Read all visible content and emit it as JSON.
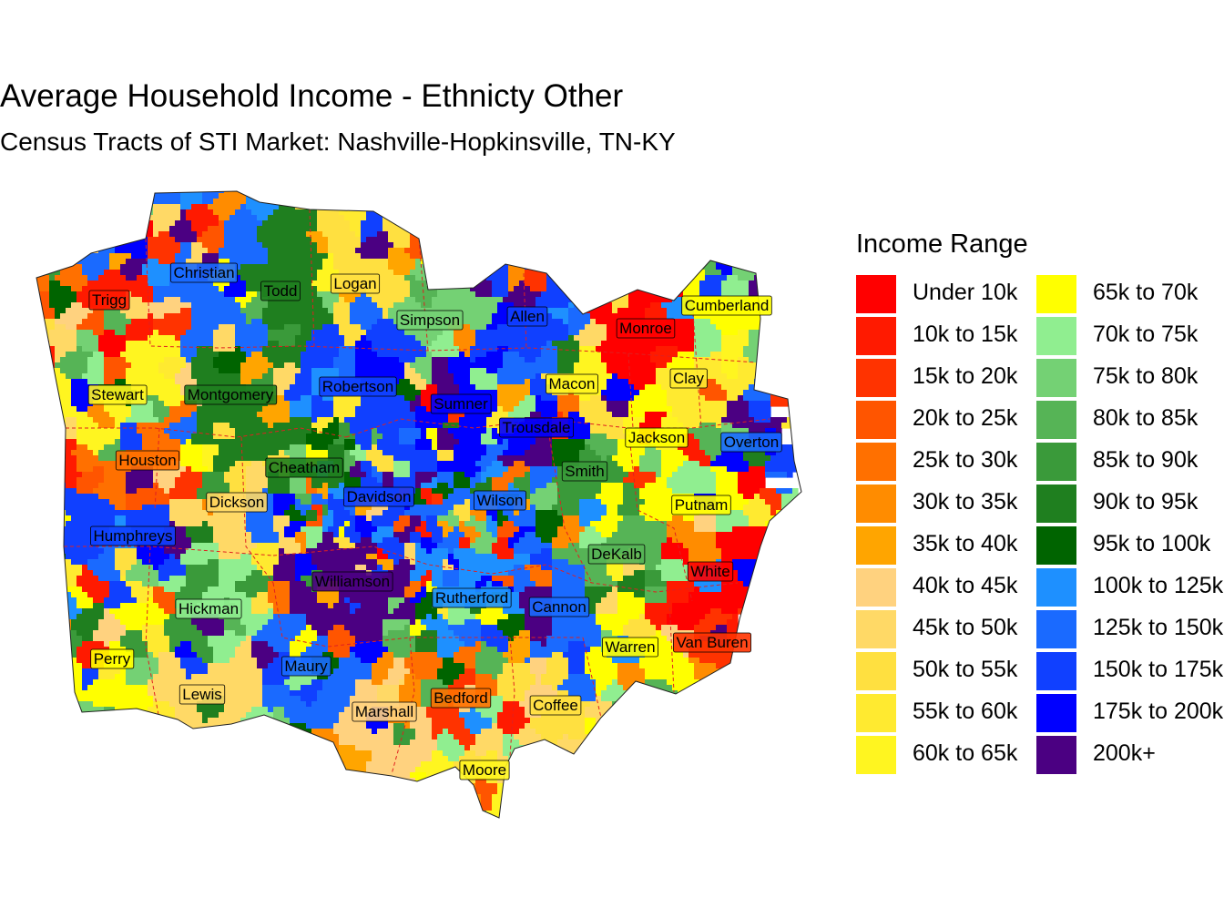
{
  "title": "Average Household Income - Ethnicty Other",
  "subtitle": "Census Tracts of STI Market: Nashville-Hopkinsville, TN-KY",
  "legend": {
    "title": "Income Range",
    "items": [
      {
        "label": "Under 10k",
        "color": "#FF0000"
      },
      {
        "label": "10k to 15k",
        "color": "#FF1A00"
      },
      {
        "label": "15k to 20k",
        "color": "#FF3300"
      },
      {
        "label": "20k to 25k",
        "color": "#FF5500"
      },
      {
        "label": "25k to 30k",
        "color": "#FF7000"
      },
      {
        "label": "30k to 35k",
        "color": "#FF8C00"
      },
      {
        "label": "35k to 40k",
        "color": "#FFA500"
      },
      {
        "label": "40k to 45k",
        "color": "#FFD27F"
      },
      {
        "label": "45k to 50k",
        "color": "#FFD966"
      },
      {
        "label": "50k to 55k",
        "color": "#FFE040"
      },
      {
        "label": "55k to 60k",
        "color": "#FFEA30"
      },
      {
        "label": "60k to 65k",
        "color": "#FFF520"
      },
      {
        "label": "65k to 70k",
        "color": "#FFFF00"
      },
      {
        "label": "70k to 75k",
        "color": "#90EE90"
      },
      {
        "label": "75k to 80k",
        "color": "#74D174"
      },
      {
        "label": "80k to 85k",
        "color": "#56B456"
      },
      {
        "label": "85k to 90k",
        "color": "#3A9A3A"
      },
      {
        "label": "90k to 95k",
        "color": "#1F7F1F"
      },
      {
        "label": "95k to 100k",
        "color": "#006400"
      },
      {
        "label": "100k to 125k",
        "color": "#1E90FF"
      },
      {
        "label": "125k to 150k",
        "color": "#1A6AFF"
      },
      {
        "label": "150k to 175k",
        "color": "#1040FF"
      },
      {
        "label": "175k to 200k",
        "color": "#0000FF"
      },
      {
        "label": "200k+",
        "color": "#4B0082"
      }
    ]
  },
  "counties": [
    {
      "name": "Trigg",
      "cls": 1
    },
    {
      "name": "Christian",
      "cls": 20
    },
    {
      "name": "Todd",
      "cls": 17
    },
    {
      "name": "Logan",
      "cls": 9
    },
    {
      "name": "Simpson",
      "cls": 14
    },
    {
      "name": "Allen",
      "cls": 21
    },
    {
      "name": "Monroe",
      "cls": 0
    },
    {
      "name": "Cumberland",
      "cls": 12
    },
    {
      "name": "Stewart",
      "cls": 11
    },
    {
      "name": "Montgomery",
      "cls": 17
    },
    {
      "name": "Robertson",
      "cls": 21
    },
    {
      "name": "Sumner",
      "cls": 22
    },
    {
      "name": "Macon",
      "cls": 11
    },
    {
      "name": "Clay",
      "cls": 10
    },
    {
      "name": "Trousdale",
      "cls": 22
    },
    {
      "name": "Jackson",
      "cls": 12
    },
    {
      "name": "Overton",
      "cls": 20
    },
    {
      "name": "Houston",
      "cls": 4
    },
    {
      "name": "Cheatham",
      "cls": 17
    },
    {
      "name": "Smith",
      "cls": 16
    },
    {
      "name": "Davidson",
      "cls": 21
    },
    {
      "name": "Wilson",
      "cls": 20
    },
    {
      "name": "Dickson",
      "cls": 8
    },
    {
      "name": "Putnam",
      "cls": 12
    },
    {
      "name": "Humphreys",
      "cls": 21
    },
    {
      "name": "DeKalb",
      "cls": 15
    },
    {
      "name": "White",
      "cls": 0
    },
    {
      "name": "Williamson",
      "cls": 23
    },
    {
      "name": "Rutherford",
      "cls": 19
    },
    {
      "name": "Cannon",
      "cls": 20
    },
    {
      "name": "Hickman",
      "cls": 13
    },
    {
      "name": "Warren",
      "cls": 12
    },
    {
      "name": "Van Buren",
      "cls": 2
    },
    {
      "name": "Perry",
      "cls": 12
    },
    {
      "name": "Maury",
      "cls": 20
    },
    {
      "name": "Lewis",
      "cls": 8
    },
    {
      "name": "Marshall",
      "cls": 7
    },
    {
      "name": "Bedford",
      "cls": 4
    },
    {
      "name": "Coffee",
      "cls": 9
    },
    {
      "name": "Moore",
      "cls": 11
    }
  ]
}
